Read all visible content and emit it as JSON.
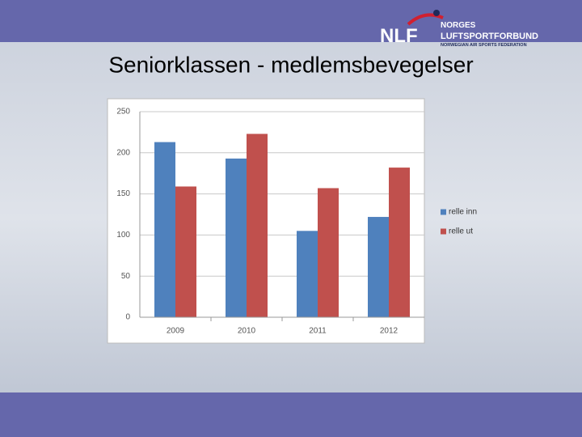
{
  "logo": {
    "mark": "NLF",
    "line1": "NORGES",
    "line2": "LUFTSPORTFORBUND",
    "line3": "NORWEGIAN AIR SPORTS FEDERATION"
  },
  "chart_data": {
    "type": "bar",
    "title": "Seniorklassen - medlemsbevegelser",
    "categories": [
      "2009",
      "2010",
      "2011",
      "2012"
    ],
    "series": [
      {
        "name": "relle inn",
        "color": "#4f81bd",
        "values": [
          213,
          193,
          105,
          122
        ]
      },
      {
        "name": "relle ut",
        "color": "#c0504d",
        "values": [
          159,
          223,
          157,
          182
        ]
      }
    ],
    "ylim": [
      0,
      250
    ],
    "yticks": [
      0,
      50,
      100,
      150,
      200,
      250
    ],
    "grid": true,
    "legend": "right"
  }
}
